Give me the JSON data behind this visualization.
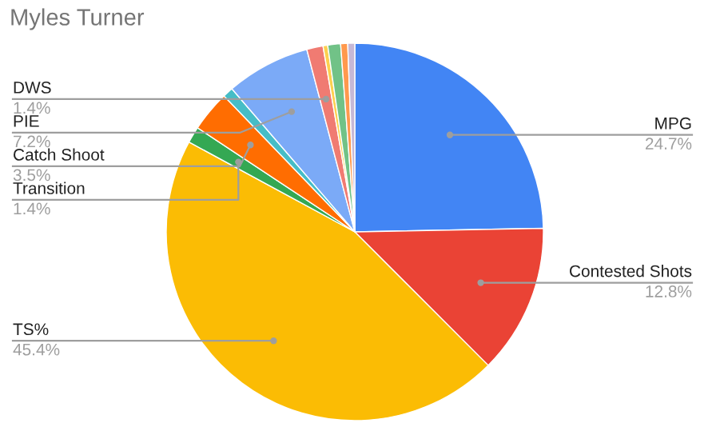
{
  "chart_data": {
    "type": "pie",
    "title": "Myles Turner",
    "categories": [
      "MPG",
      "Contested Shots",
      "TS%",
      "Transition",
      "Catch Shoot",
      null,
      "PIE",
      "DWS",
      null,
      null,
      null,
      null
    ],
    "values": [
      24.7,
      12.8,
      45.4,
      1.4,
      3.5,
      0.9,
      7.2,
      1.4,
      0.4,
      1.1,
      0.6,
      0.6
    ],
    "value_labels": [
      "24.7%",
      "12.8%",
      "45.4%",
      "1.4%",
      "3.5%",
      null,
      "7.2%",
      "1.4%",
      null,
      null,
      null,
      null
    ],
    "colors": [
      "#4285f4",
      "#ea4335",
      "#fbbc04",
      "#34a853",
      "#ff6d01",
      "#46bdc6",
      "#7baaf7",
      "#f07b72",
      "#fcd04f",
      "#71c287",
      "#ff994d",
      "#c6b8d6"
    ],
    "legend": false
  }
}
